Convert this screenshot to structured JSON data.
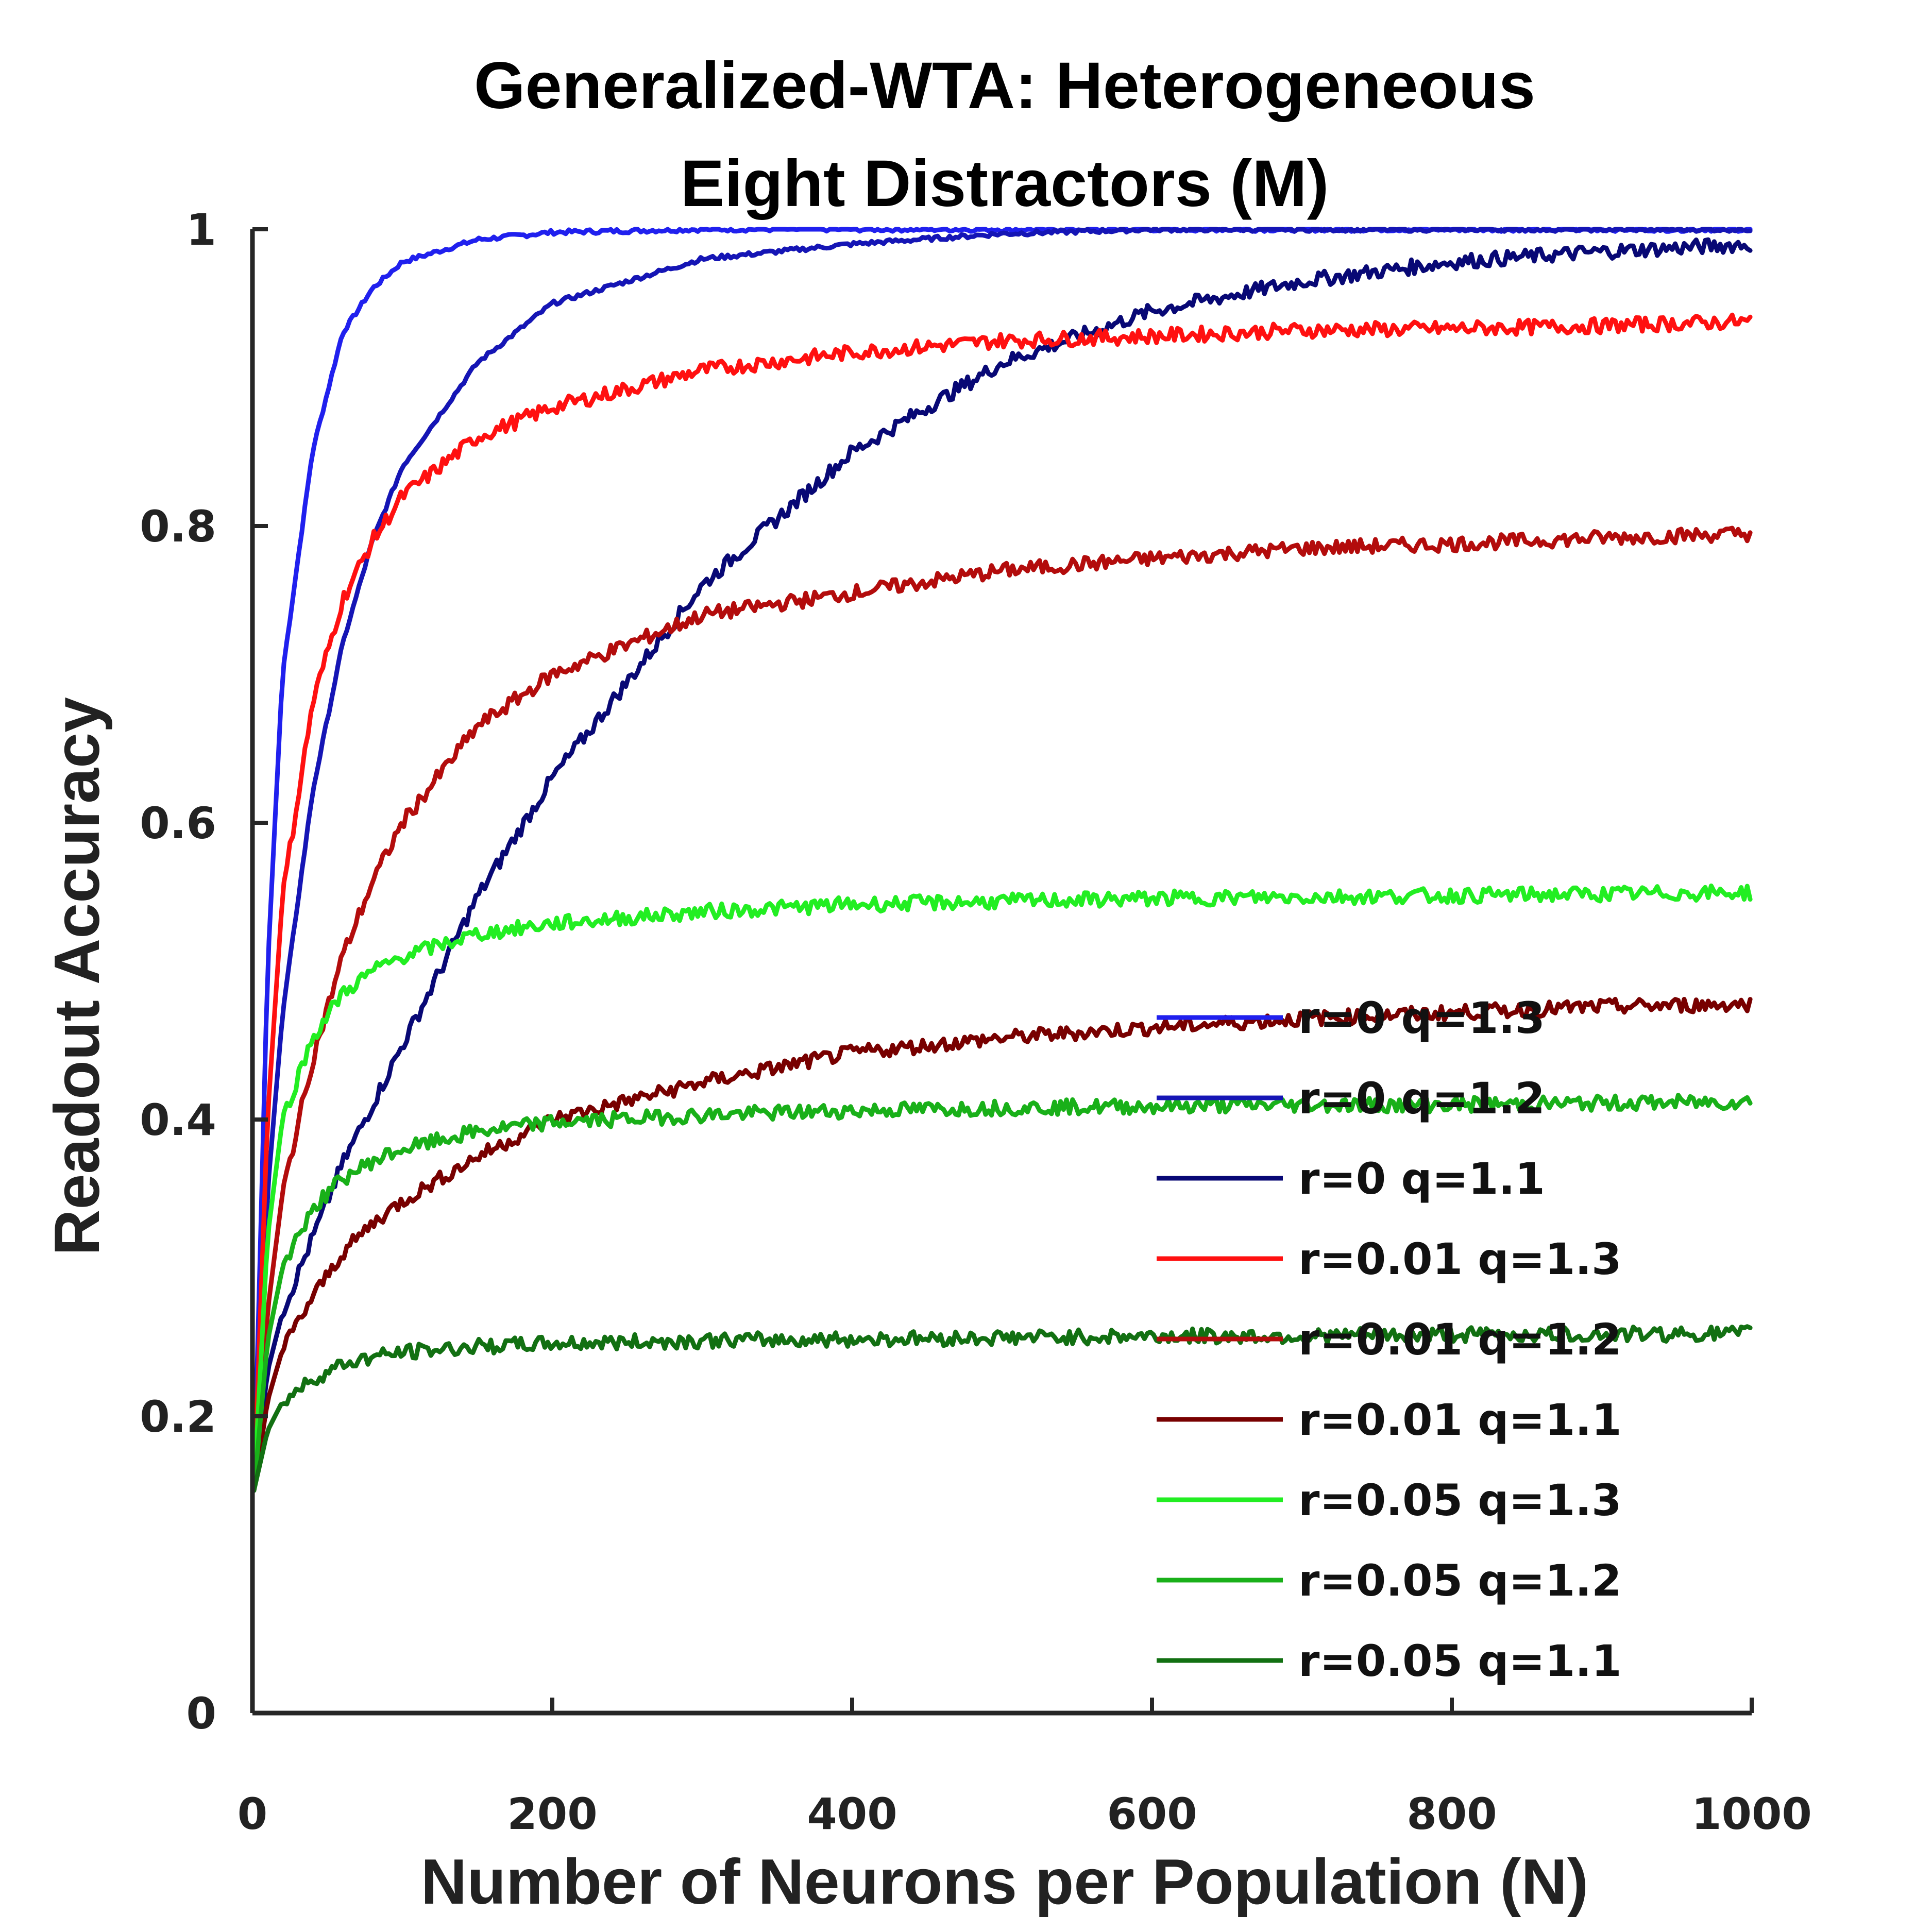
{
  "chart_data": {
    "type": "line",
    "title": [
      "Generalized-WTA: Heterogeneous",
      "Eight Distractors (M)"
    ],
    "xlabel": "Number of Neurons per Population (N)",
    "ylabel": "Readout Accuracy",
    "xlim": [
      0,
      1000
    ],
    "ylim": [
      0,
      1
    ],
    "xticks": [
      0,
      200,
      400,
      600,
      800,
      1000
    ],
    "xtick_labels": [
      "0",
      "200",
      "400",
      "600",
      "800",
      "1000"
    ],
    "yticks": [
      0,
      0.2,
      0.4,
      0.6,
      0.8,
      1
    ],
    "ytick_labels": [
      "0",
      "0.2",
      "0.4",
      "0.6",
      "0.8",
      "1"
    ],
    "grid": false,
    "legend_position": "lower-right",
    "x": [
      1,
      10,
      20,
      40,
      60,
      80,
      100,
      150,
      200,
      300,
      400,
      500,
      600,
      700,
      800,
      900,
      1000
    ],
    "series": [
      {
        "name": "r=0 q=1.3",
        "color": "#2020ee",
        "values": [
          0.15,
          0.5,
          0.7,
          0.85,
          0.93,
          0.96,
          0.978,
          0.993,
          0.998,
          1.0,
          1.0,
          1.0,
          1.0,
          1.0,
          1.0,
          1.0,
          1.0
        ]
      },
      {
        "name": "r=0 q=1.2",
        "color": "#1515b5",
        "values": [
          0.15,
          0.35,
          0.47,
          0.62,
          0.72,
          0.79,
          0.84,
          0.91,
          0.95,
          0.98,
          0.99,
          0.997,
          1.0,
          1.0,
          1.0,
          1.0,
          1.0
        ]
      },
      {
        "name": "r=0 q=1.1",
        "color": "#080875",
        "values": [
          0.15,
          0.23,
          0.27,
          0.32,
          0.37,
          0.41,
          0.45,
          0.55,
          0.63,
          0.76,
          0.85,
          0.91,
          0.945,
          0.965,
          0.978,
          0.985,
          0.99
        ]
      },
      {
        "name": "r=0.01 q=1.3",
        "color": "#ff1010",
        "values": [
          0.15,
          0.4,
          0.55,
          0.68,
          0.75,
          0.79,
          0.82,
          0.86,
          0.88,
          0.905,
          0.917,
          0.925,
          0.928,
          0.932,
          0.933,
          0.935,
          0.938
        ]
      },
      {
        "name": "r=0.01 q=1.2",
        "color": "#b30c0c",
        "values": [
          0.15,
          0.27,
          0.35,
          0.44,
          0.51,
          0.56,
          0.6,
          0.665,
          0.7,
          0.74,
          0.755,
          0.77,
          0.778,
          0.785,
          0.788,
          0.792,
          0.795
        ]
      },
      {
        "name": "r=0.01 q=1.1",
        "color": "#780000",
        "values": [
          0.15,
          0.21,
          0.245,
          0.28,
          0.31,
          0.33,
          0.345,
          0.375,
          0.4,
          0.425,
          0.445,
          0.455,
          0.462,
          0.468,
          0.472,
          0.476,
          0.478
        ]
      },
      {
        "name": "r=0.05 q=1.3",
        "color": "#22ee22",
        "values": [
          0.15,
          0.32,
          0.4,
          0.455,
          0.485,
          0.5,
          0.51,
          0.525,
          0.532,
          0.54,
          0.545,
          0.547,
          0.549,
          0.55,
          0.551,
          0.552,
          0.553
        ]
      },
      {
        "name": "r=0.05 q=1.2",
        "color": "#19b019",
        "values": [
          0.15,
          0.25,
          0.3,
          0.34,
          0.36,
          0.372,
          0.38,
          0.392,
          0.398,
          0.403,
          0.406,
          0.408,
          0.409,
          0.41,
          0.41,
          0.411,
          0.412
        ]
      },
      {
        "name": "r=0.05 q=1.1",
        "color": "#127012",
        "values": [
          0.15,
          0.19,
          0.21,
          0.225,
          0.235,
          0.24,
          0.243,
          0.247,
          0.249,
          0.251,
          0.252,
          0.253,
          0.254,
          0.254,
          0.255,
          0.255,
          0.256
        ]
      }
    ]
  }
}
